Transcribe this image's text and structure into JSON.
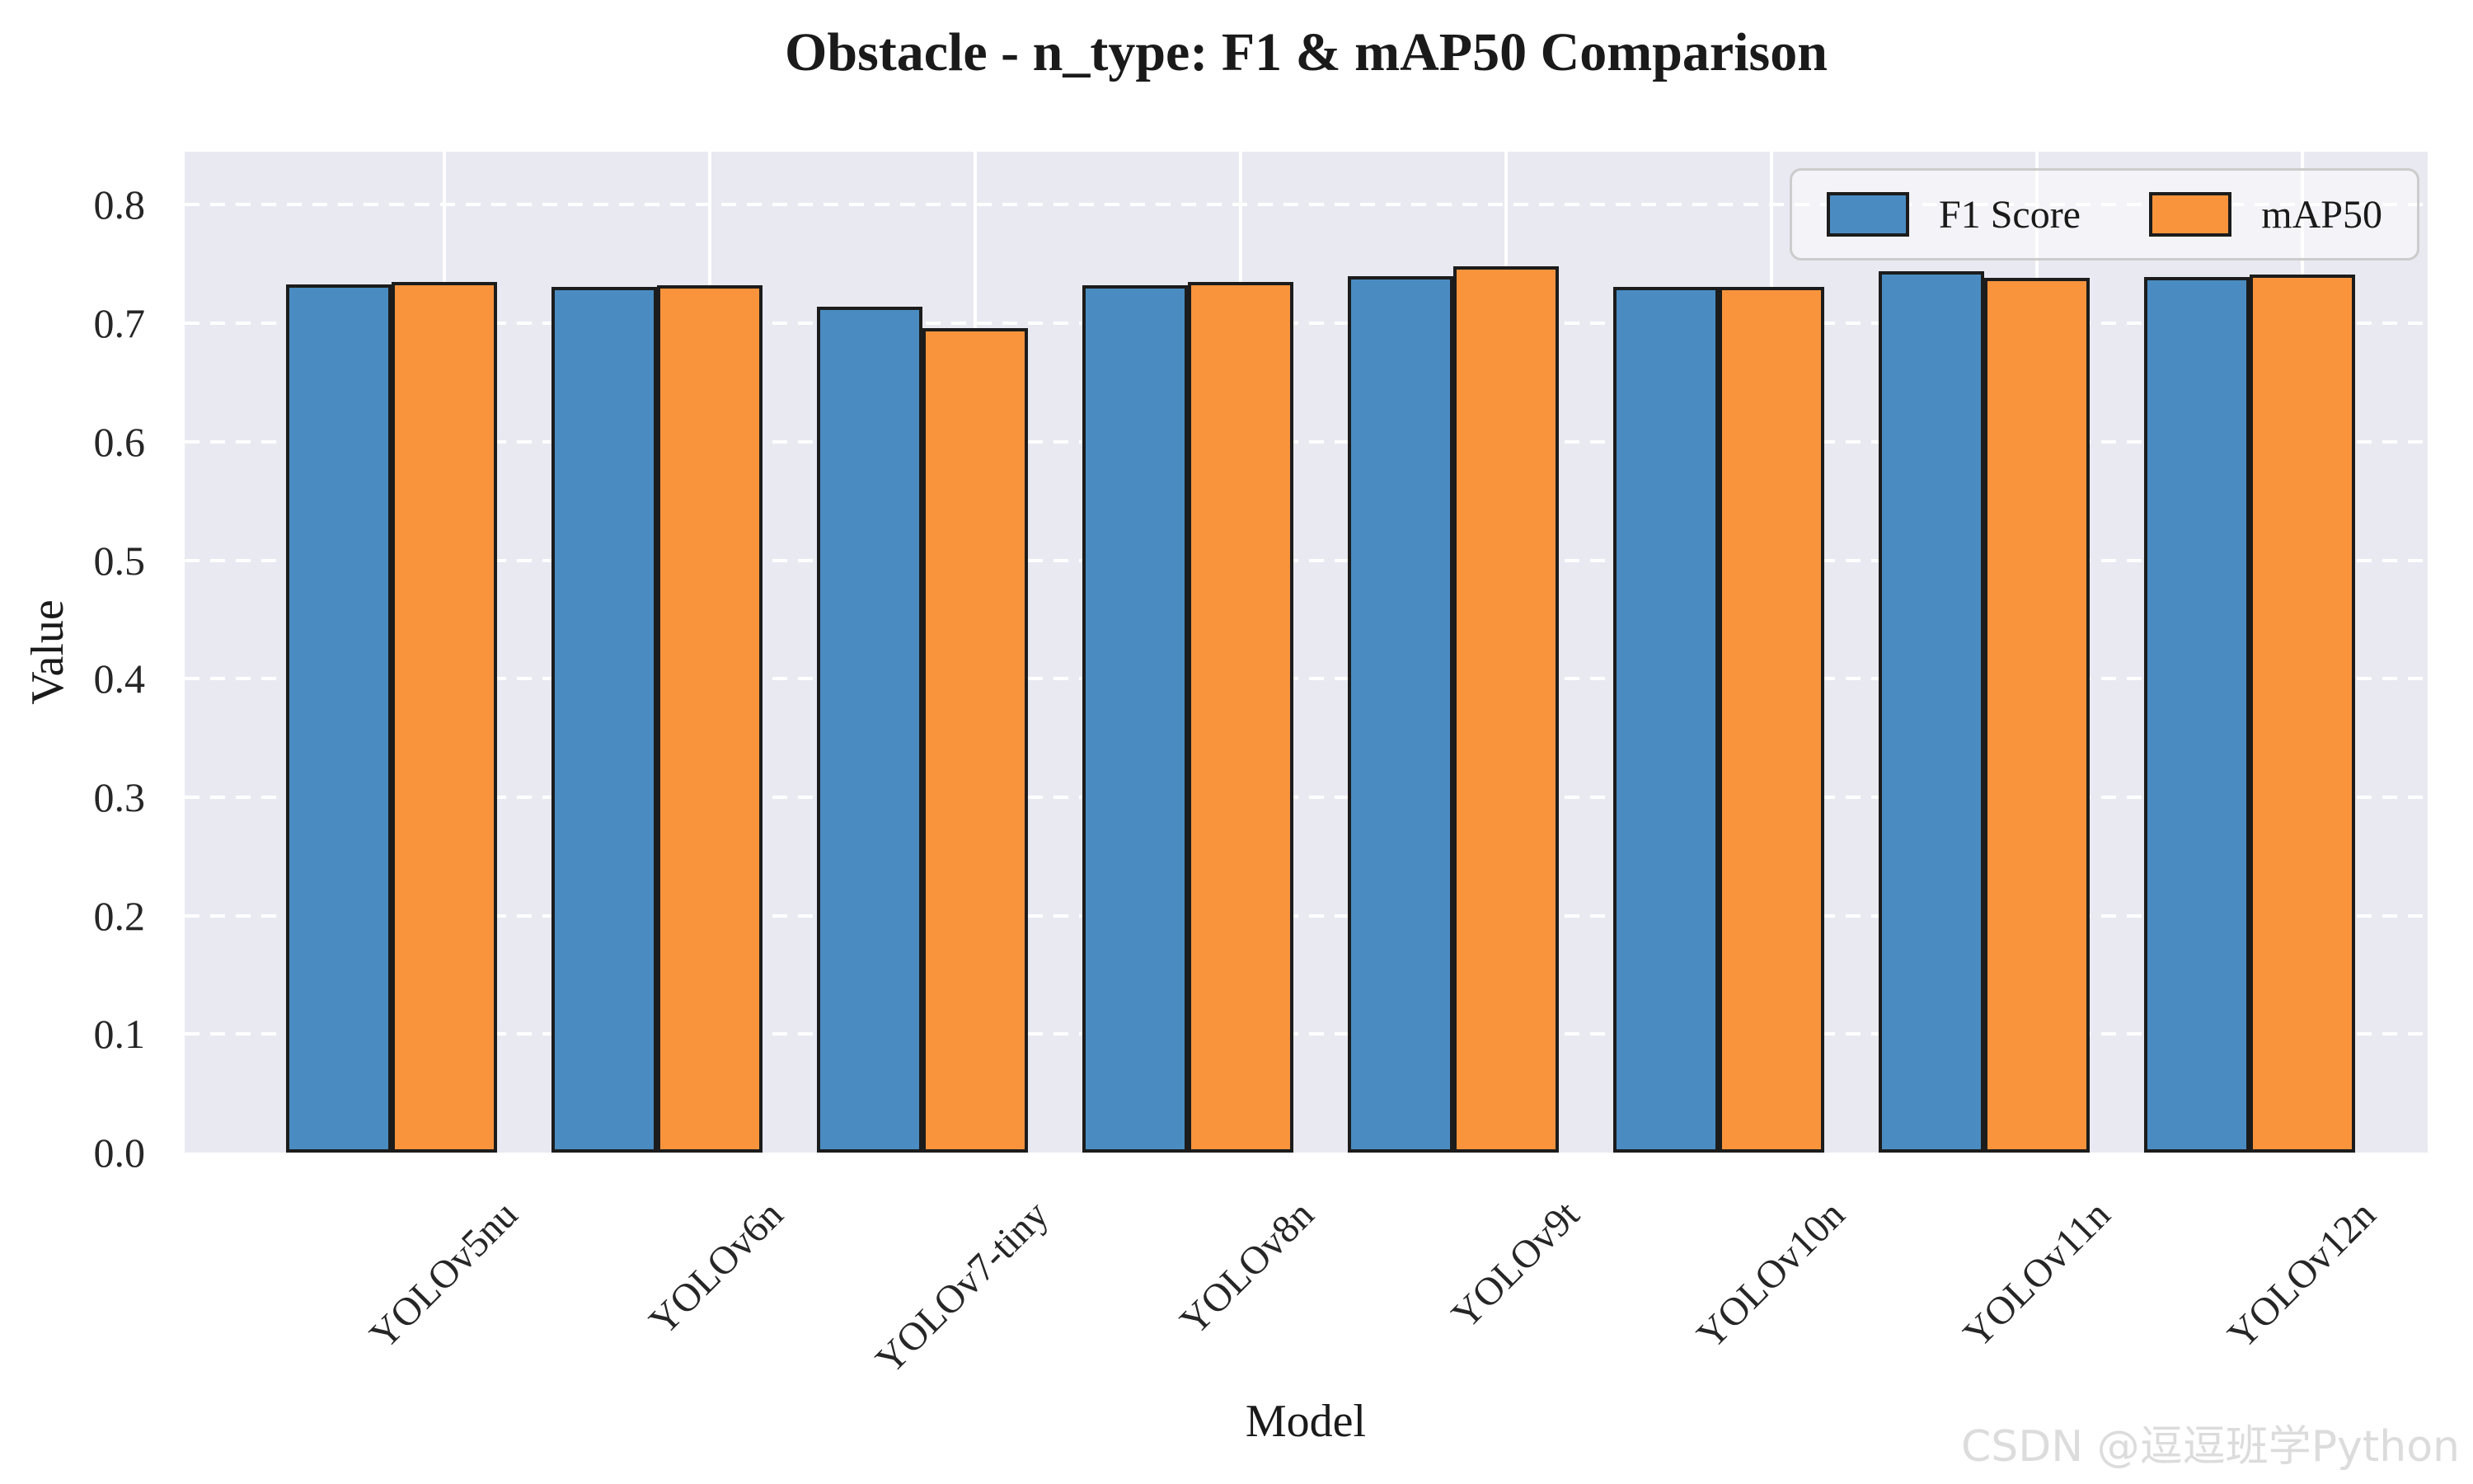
{
  "title": "Obstacle - n_type: F1 & mAP50 Comparison",
  "watermark": "CSDN @逗逗班学Python",
  "chart_data": {
    "type": "bar",
    "title": "Obstacle - n_type: F1 & mAP50 Comparison",
    "xlabel": "Model",
    "ylabel": "Value",
    "categories": [
      "YOLOv5nu",
      "YOLOv6n",
      "YOLOv7-tiny",
      "YOLOv8n",
      "YOLOv9t",
      "YOLOv10n",
      "YOLOv11n",
      "YOLOv12n"
    ],
    "series": [
      {
        "name": "F1 Score",
        "color": "#4A8CC2",
        "values": [
          0.733,
          0.731,
          0.714,
          0.732,
          0.74,
          0.731,
          0.744,
          0.739
        ]
      },
      {
        "name": "mAP50",
        "color": "#F9943D",
        "values": [
          0.735,
          0.732,
          0.696,
          0.735,
          0.748,
          0.731,
          0.738,
          0.741
        ]
      }
    ],
    "ylim": [
      0,
      0.845
    ],
    "yticks": [
      0.0,
      0.1,
      0.2,
      0.3,
      0.4,
      0.5,
      0.6,
      0.7,
      0.8
    ],
    "grid": true,
    "gridline_color": "#ffffff",
    "plot_background": "#E9E9F2",
    "bar_edge_color": "#1c1c1c",
    "legend_position": "upper right"
  }
}
